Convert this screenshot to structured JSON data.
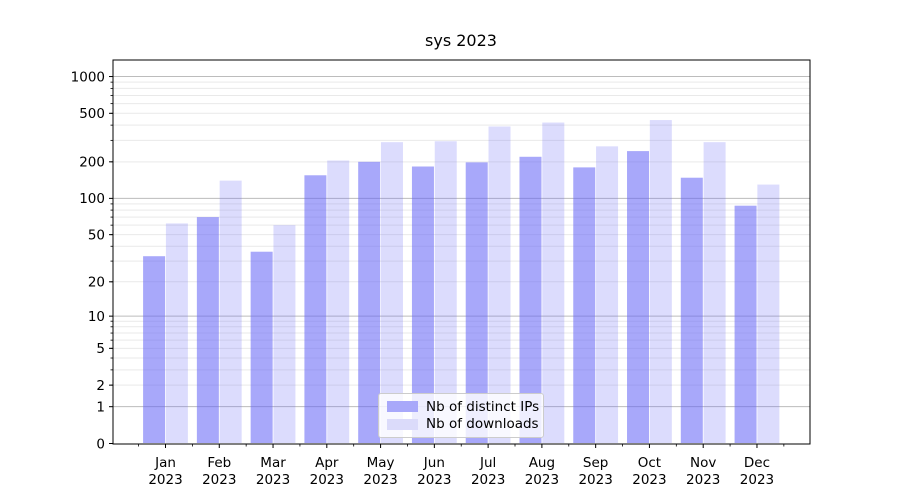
{
  "figure": {
    "background": "#ffffff",
    "text_color": "#000000",
    "spine_color": "#000000"
  },
  "chart_data": {
    "type": "bar",
    "title": "sys 2023",
    "categories": [
      "Jan 2023",
      "Feb 2023",
      "Mar 2023",
      "Apr 2023",
      "May 2023",
      "Jun 2023",
      "Jul 2023",
      "Aug 2023",
      "Sep 2023",
      "Oct 2023",
      "Nov 2023",
      "Dec 2023"
    ],
    "series": [
      {
        "name": "Nb of distinct IPs",
        "fill": "rgba(102,102,246,0.57)",
        "swatch": "#a8a8fa",
        "values": [
          33,
          70,
          36,
          155,
          200,
          183,
          198,
          220,
          180,
          245,
          148,
          87
        ]
      },
      {
        "name": "Nb of downloads",
        "fill": "rgba(102,102,246,0.23)",
        "swatch": "#dbdbfa",
        "values": [
          62,
          140,
          60,
          205,
          290,
          295,
          390,
          420,
          268,
          440,
          290,
          130
        ]
      }
    ],
    "xlabel": "",
    "ylabel": "",
    "yscale": "log1p",
    "yticks": [
      0,
      1,
      2,
      5,
      10,
      20,
      50,
      100,
      200,
      500,
      1000
    ],
    "ylim": [
      0,
      1375
    ],
    "grid": {
      "major": true,
      "minor": true,
      "major_color": "#bcbcbc",
      "minor_color": "#e9e9e9"
    },
    "legend": {
      "position": "lower center",
      "entries": [
        "Nb of distinct IPs",
        "Nb of downloads"
      ]
    }
  }
}
